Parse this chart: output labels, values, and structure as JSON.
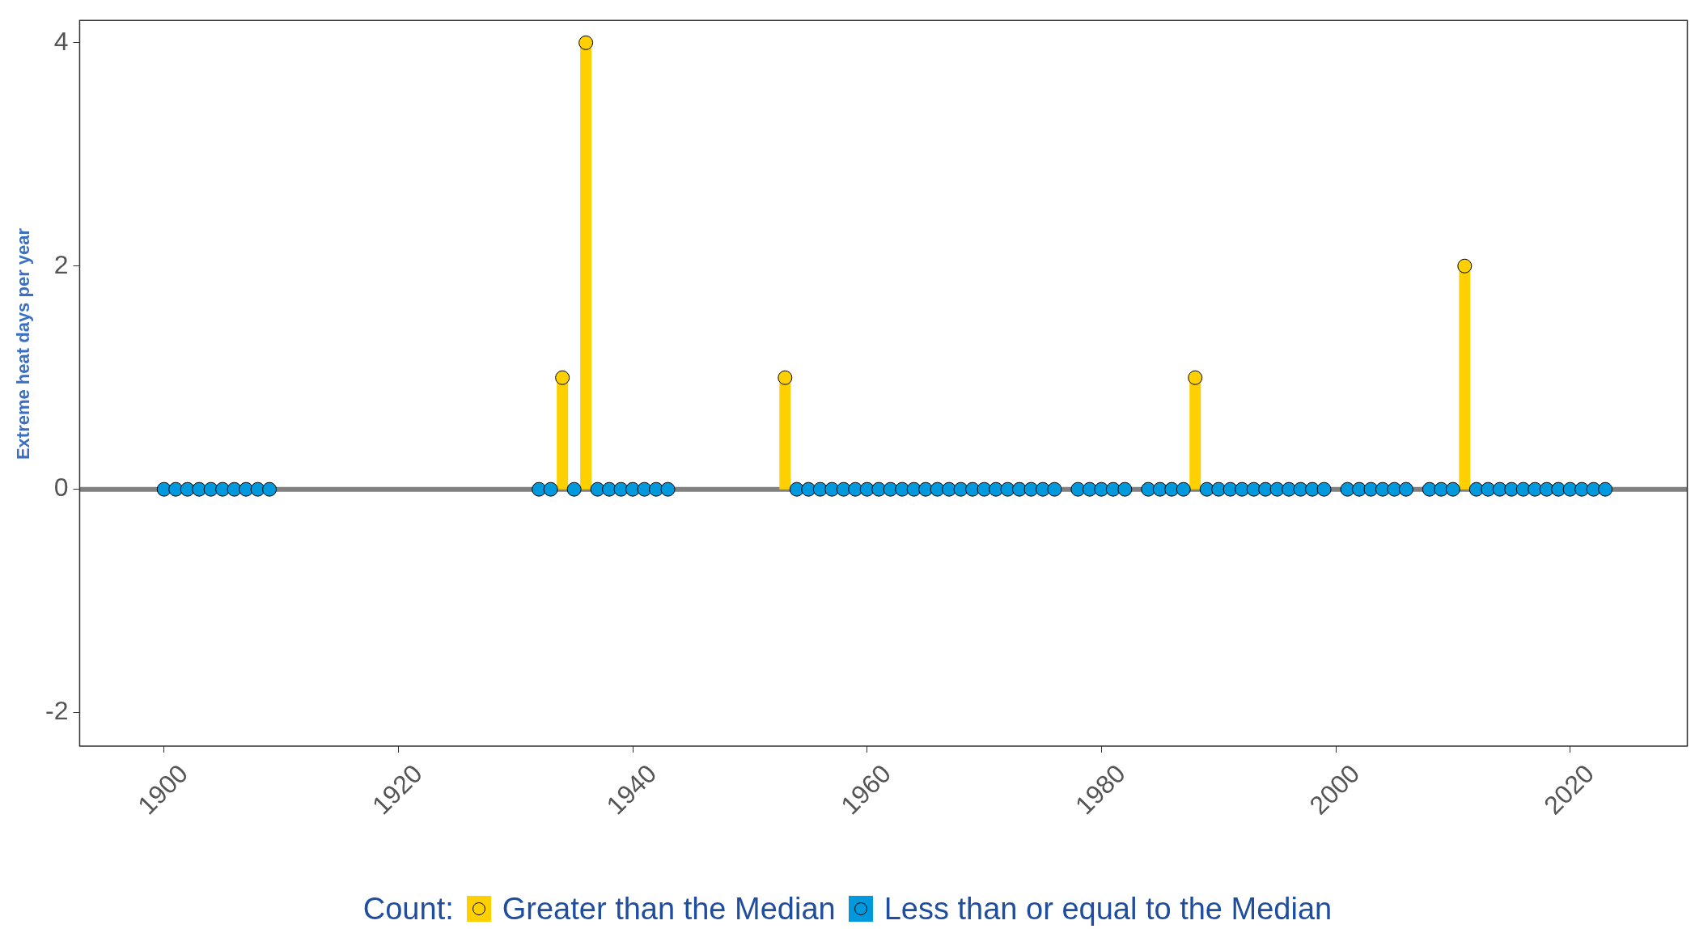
{
  "chart_data": {
    "type": "lollipop",
    "ylabel": "Extreme heat days per year",
    "legend_title": "Count:",
    "legend": "bottom",
    "grid": false,
    "marker": "circle",
    "xlim": [
      1892.8,
      2030
    ],
    "xticks": [
      1900,
      1920,
      1940,
      1960,
      1980,
      2000,
      2020
    ],
    "ylim": [
      -2.3,
      4.2
    ],
    "yticks": [
      -2,
      0,
      2,
      4
    ],
    "ref_lines": [
      {
        "axis": "y",
        "value": 0,
        "color": "#808080"
      }
    ],
    "series": [
      {
        "name": "Greater than the Median",
        "color": "#ffd000",
        "x": [
          1934,
          1936,
          1953,
          1988,
          2011
        ],
        "values": [
          1,
          4,
          1,
          1,
          2
        ]
      },
      {
        "name": "Less than or equal to the Median",
        "color": "#0099dd",
        "x": [
          1900,
          1901,
          1902,
          1903,
          1904,
          1905,
          1906,
          1907,
          1908,
          1909,
          1932,
          1933,
          1935,
          1937,
          1938,
          1939,
          1940,
          1941,
          1942,
          1943,
          1954,
          1955,
          1956,
          1957,
          1958,
          1959,
          1960,
          1961,
          1962,
          1963,
          1964,
          1965,
          1966,
          1967,
          1968,
          1969,
          1970,
          1971,
          1972,
          1973,
          1974,
          1975,
          1976,
          1978,
          1979,
          1980,
          1981,
          1982,
          1984,
          1985,
          1986,
          1987,
          1989,
          1990,
          1991,
          1992,
          1993,
          1994,
          1995,
          1996,
          1997,
          1998,
          1999,
          2001,
          2002,
          2003,
          2004,
          2005,
          2006,
          2008,
          2009,
          2010,
          2012,
          2013,
          2014,
          2015,
          2016,
          2017,
          2018,
          2019,
          2020,
          2021,
          2022,
          2023
        ],
        "values": [
          0,
          0,
          0,
          0,
          0,
          0,
          0,
          0,
          0,
          0,
          0,
          0,
          0,
          0,
          0,
          0,
          0,
          0,
          0,
          0,
          0,
          0,
          0,
          0,
          0,
          0,
          0,
          0,
          0,
          0,
          0,
          0,
          0,
          0,
          0,
          0,
          0,
          0,
          0,
          0,
          0,
          0,
          0,
          0,
          0,
          0,
          0,
          0,
          0,
          0,
          0,
          0,
          0,
          0,
          0,
          0,
          0,
          0,
          0,
          0,
          0,
          0,
          0,
          0,
          0,
          0,
          0,
          0,
          0,
          0,
          0,
          0,
          0,
          0,
          0,
          0,
          0,
          0,
          0,
          0,
          0,
          0,
          0,
          0
        ]
      }
    ]
  }
}
